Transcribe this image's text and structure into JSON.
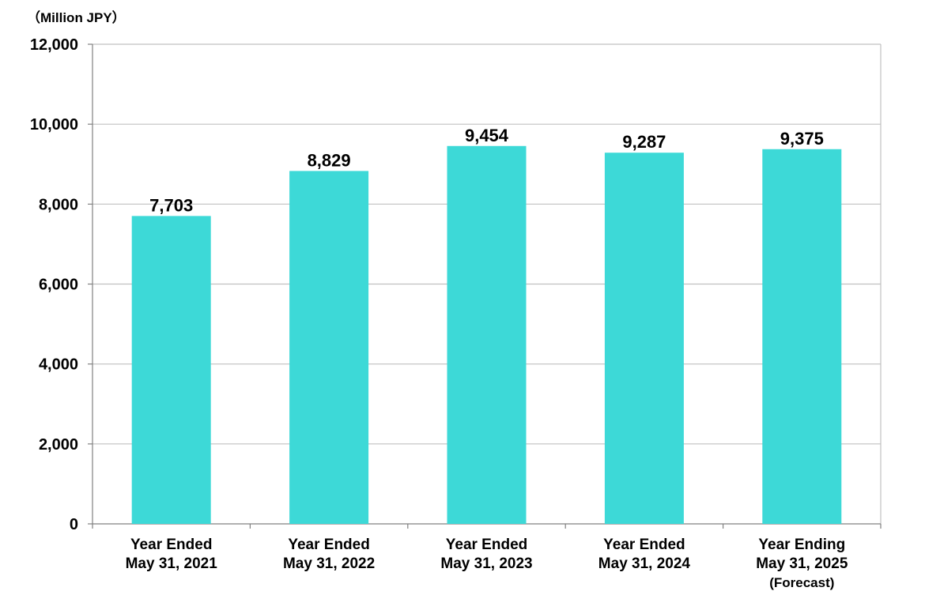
{
  "unit_label": "（Million JPY）",
  "colors": {
    "bar": "#3dd9d7",
    "grid": "#c0c0c0",
    "axis": "#808080",
    "text": "#000000"
  },
  "chart_data": {
    "type": "bar",
    "title": "",
    "xlabel": "",
    "ylabel": "",
    "categories": [
      [
        "Year Ended",
        "May 31, 2021"
      ],
      [
        "Year Ended",
        "May 31, 2022"
      ],
      [
        "Year Ended",
        "May 31, 2023"
      ],
      [
        "Year Ended",
        "May 31, 2024"
      ],
      [
        "Year Ending",
        "May 31, 2025",
        "(Forecast)"
      ]
    ],
    "values": [
      7703,
      8829,
      9454,
      9287,
      9375
    ],
    "value_labels": [
      "7,703",
      "8,829",
      "9,454",
      "9,287",
      "9,375"
    ],
    "ylim": [
      0,
      12000
    ],
    "yticks": [
      0,
      2000,
      4000,
      6000,
      8000,
      10000,
      12000
    ],
    "ytick_labels": [
      "0",
      "2,000",
      "4,000",
      "6,000",
      "8,000",
      "10,000",
      "12,000"
    ],
    "grid": true,
    "legend": "none"
  }
}
